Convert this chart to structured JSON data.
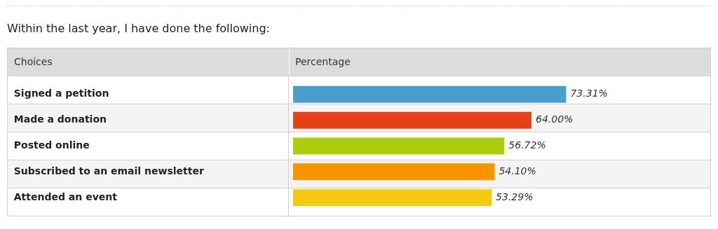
{
  "chart_data": {
    "type": "bar",
    "orientation": "horizontal",
    "title": "Within the last year, I have done the following:",
    "ylabel": "Choices",
    "xlabel": "Percentage",
    "categories": [
      "Signed a petition",
      "Made a donation",
      "Posted online",
      "Subscribed to an email newsletter",
      "Attended an event"
    ],
    "values": [
      73.31,
      64.0,
      56.72,
      54.1,
      53.29
    ],
    "colors": [
      "#4b9dcd",
      "#e5421a",
      "#abcd0d",
      "#f79500",
      "#f5c90e"
    ],
    "value_labels": [
      "73.31%",
      "64.00%",
      "56.72%",
      "54.10%",
      "53.29%"
    ],
    "tick_labels": "y"
  }
}
